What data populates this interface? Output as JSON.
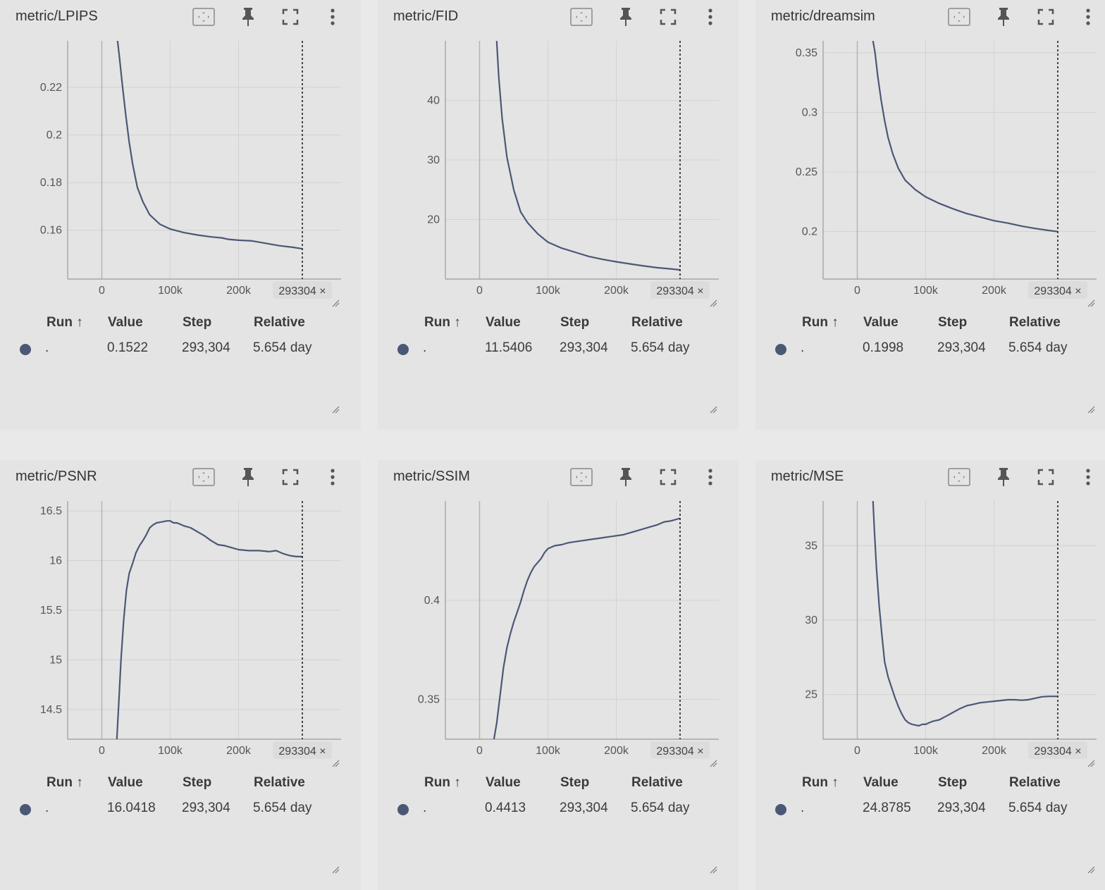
{
  "table_headers": {
    "run": "Run ↑",
    "value": "Value",
    "step": "Step",
    "relative": "Relative"
  },
  "marker_label": "293304 ×",
  "series_color": "#4b5875",
  "chart_data": [
    {
      "type": "line",
      "title": "metric/LPIPS",
      "x_ticks": [
        0,
        100000,
        200000
      ],
      "x_tick_labels": [
        "0",
        "100k",
        "200k"
      ],
      "xlim": [
        -50000,
        350000
      ],
      "y_ticks": [
        0.16,
        0.18,
        0.2,
        0.22
      ],
      "y_tick_labels": [
        "0.16",
        "0.18",
        "0.2",
        "0.22"
      ],
      "ylim": [
        0.1395,
        0.2395
      ],
      "marker_step": 293304,
      "x": [
        23000,
        26000,
        30000,
        35000,
        40000,
        45000,
        52000,
        60000,
        70000,
        85000,
        100000,
        120000,
        140000,
        160000,
        175000,
        185000,
        200000,
        220000,
        240000,
        260000,
        280000,
        293304
      ],
      "y": [
        0.2395,
        0.232,
        0.221,
        0.2085,
        0.197,
        0.188,
        0.178,
        0.172,
        0.1665,
        0.1625,
        0.1605,
        0.159,
        0.158,
        0.1572,
        0.1568,
        0.1562,
        0.1558,
        0.1555,
        0.1545,
        0.1535,
        0.1528,
        0.1522
      ],
      "table": {
        "run": ".",
        "value": "0.1522",
        "step": "293,304",
        "relative": "5.654 day"
      }
    },
    {
      "type": "line",
      "title": "metric/FID",
      "x_ticks": [
        0,
        100000,
        200000
      ],
      "x_tick_labels": [
        "0",
        "100k",
        "200k"
      ],
      "xlim": [
        -50000,
        350000
      ],
      "y_ticks": [
        20,
        30,
        40
      ],
      "y_tick_labels": [
        "20",
        "30",
        "40"
      ],
      "ylim": [
        10,
        50
      ],
      "marker_step": 293304,
      "x": [
        25000,
        28000,
        33000,
        40000,
        50000,
        60000,
        70000,
        85000,
        100000,
        120000,
        140000,
        160000,
        180000,
        200000,
        220000,
        240000,
        260000,
        280000,
        293304
      ],
      "y": [
        50,
        44,
        37,
        30.5,
        25,
        21.3,
        19.5,
        17.6,
        16.2,
        15.2,
        14.5,
        13.8,
        13.3,
        12.9,
        12.55,
        12.2,
        11.9,
        11.7,
        11.54
      ],
      "table": {
        "run": ".",
        "value": "11.5406",
        "step": "293,304",
        "relative": "5.654 day"
      }
    },
    {
      "type": "line",
      "title": "metric/dreamsim",
      "x_ticks": [
        0,
        100000,
        200000
      ],
      "x_tick_labels": [
        "0",
        "100k",
        "200k"
      ],
      "xlim": [
        -50000,
        350000
      ],
      "y_ticks": [
        0.2,
        0.25,
        0.3,
        0.35
      ],
      "y_tick_labels": [
        "0.2",
        "0.25",
        "0.3",
        "0.35"
      ],
      "ylim": [
        0.16,
        0.36
      ],
      "marker_step": 293304,
      "x": [
        23000,
        26000,
        30000,
        35000,
        40000,
        45000,
        52000,
        60000,
        70000,
        85000,
        100000,
        120000,
        140000,
        160000,
        180000,
        200000,
        220000,
        240000,
        260000,
        280000,
        293304
      ],
      "y": [
        0.36,
        0.35,
        0.33,
        0.31,
        0.293,
        0.279,
        0.265,
        0.253,
        0.243,
        0.235,
        0.229,
        0.2235,
        0.219,
        0.215,
        0.212,
        0.209,
        0.207,
        0.2045,
        0.2025,
        0.2008,
        0.1998
      ],
      "table": {
        "run": ".",
        "value": "0.1998",
        "step": "293,304",
        "relative": "5.654 day"
      }
    },
    {
      "type": "line",
      "title": "metric/PSNR",
      "x_ticks": [
        0,
        100000,
        200000
      ],
      "x_tick_labels": [
        "0",
        "100k",
        "200k"
      ],
      "xlim": [
        -50000,
        350000
      ],
      "y_ticks": [
        14.5,
        15,
        15.5,
        16,
        16.5
      ],
      "y_tick_labels": [
        "14.5",
        "15",
        "15.5",
        "16",
        "16.5"
      ],
      "ylim": [
        14.2,
        16.6
      ],
      "marker_step": 293304,
      "x": [
        22000,
        25000,
        28000,
        32000,
        36000,
        40000,
        45000,
        50000,
        55000,
        60000,
        65000,
        70000,
        75000,
        80000,
        88000,
        95000,
        100000,
        105000,
        110000,
        120000,
        130000,
        140000,
        150000,
        160000,
        170000,
        180000,
        190000,
        200000,
        215000,
        230000,
        245000,
        255000,
        265000,
        275000,
        285000,
        293304
      ],
      "y": [
        14.2,
        14.6,
        15.0,
        15.4,
        15.7,
        15.87,
        15.97,
        16.08,
        16.15,
        16.2,
        16.26,
        16.33,
        16.36,
        16.38,
        16.39,
        16.4,
        16.4,
        16.38,
        16.38,
        16.35,
        16.33,
        16.29,
        16.25,
        16.2,
        16.16,
        16.15,
        16.13,
        16.11,
        16.1,
        16.1,
        16.09,
        16.1,
        16.07,
        16.05,
        16.04,
        16.04
      ],
      "table": {
        "run": ".",
        "value": "16.0418",
        "step": "293,304",
        "relative": "5.654 day"
      }
    },
    {
      "type": "line",
      "title": "metric/SSIM",
      "x_ticks": [
        0,
        100000,
        200000
      ],
      "x_tick_labels": [
        "0",
        "100k",
        "200k"
      ],
      "xlim": [
        -50000,
        350000
      ],
      "y_ticks": [
        0.35,
        0.4
      ],
      "y_tick_labels": [
        "0.35",
        "0.4"
      ],
      "ylim": [
        0.33,
        0.45
      ],
      "marker_step": 293304,
      "x": [
        21000,
        25000,
        30000,
        35000,
        40000,
        45000,
        50000,
        55000,
        60000,
        65000,
        70000,
        75000,
        80000,
        85000,
        90000,
        95000,
        100000,
        110000,
        120000,
        130000,
        140000,
        150000,
        160000,
        170000,
        180000,
        190000,
        200000,
        210000,
        220000,
        230000,
        240000,
        250000,
        260000,
        270000,
        280000,
        293304
      ],
      "y": [
        0.33,
        0.338,
        0.352,
        0.366,
        0.376,
        0.383,
        0.389,
        0.394,
        0.399,
        0.405,
        0.41,
        0.414,
        0.417,
        0.419,
        0.421,
        0.424,
        0.426,
        0.4275,
        0.428,
        0.429,
        0.4295,
        0.43,
        0.4305,
        0.431,
        0.4315,
        0.432,
        0.4325,
        0.433,
        0.434,
        0.435,
        0.436,
        0.437,
        0.438,
        0.4395,
        0.44,
        0.4413
      ],
      "table": {
        "run": ".",
        "value": "0.4413",
        "step": "293,304",
        "relative": "5.654 day"
      }
    },
    {
      "type": "line",
      "title": "metric/MSE",
      "x_ticks": [
        0,
        100000,
        200000
      ],
      "x_tick_labels": [
        "0",
        "100k",
        "200k"
      ],
      "xlim": [
        -50000,
        350000
      ],
      "y_ticks": [
        25,
        30,
        35
      ],
      "y_tick_labels": [
        "25",
        "30",
        "35"
      ],
      "ylim": [
        22,
        38
      ],
      "marker_step": 293304,
      "x": [
        23000,
        25000,
        28000,
        32000,
        36000,
        40000,
        45000,
        50000,
        55000,
        60000,
        65000,
        70000,
        75000,
        80000,
        85000,
        90000,
        95000,
        100000,
        105000,
        110000,
        115000,
        120000,
        130000,
        140000,
        150000,
        160000,
        170000,
        180000,
        190000,
        200000,
        210000,
        220000,
        230000,
        240000,
        250000,
        260000,
        270000,
        280000,
        293304
      ],
      "y": [
        38,
        36,
        33.5,
        31,
        29,
        27.2,
        26.2,
        25.5,
        24.8,
        24.2,
        23.7,
        23.3,
        23.1,
        23.0,
        22.95,
        22.9,
        23.0,
        23.0,
        23.1,
        23.2,
        23.25,
        23.3,
        23.55,
        23.8,
        24.05,
        24.25,
        24.35,
        24.45,
        24.5,
        24.55,
        24.6,
        24.65,
        24.65,
        24.62,
        24.65,
        24.75,
        24.85,
        24.88,
        24.88
      ],
      "table": {
        "run": ".",
        "value": "24.8785",
        "step": "293,304",
        "relative": "5.654 day"
      }
    }
  ]
}
